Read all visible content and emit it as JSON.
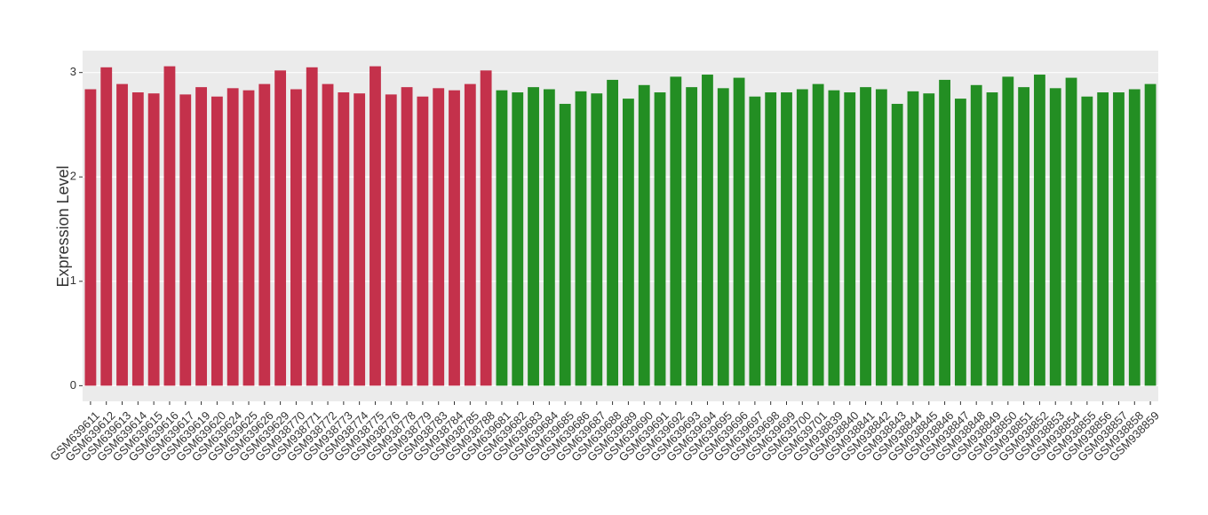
{
  "chart_data": {
    "type": "bar",
    "y_label": "Expression Level",
    "categories": [
      "GSM639611",
      "GSM639612",
      "GSM639613",
      "GSM639614",
      "GSM639615",
      "GSM639616",
      "GSM639617",
      "GSM639619",
      "GSM639620",
      "GSM639624",
      "GSM639625",
      "GSM639626",
      "GSM639629",
      "GSM938770",
      "GSM938771",
      "GSM938772",
      "GSM938773",
      "GSM938774",
      "GSM938775",
      "GSM938776",
      "GSM938778",
      "GSM938779",
      "GSM938783",
      "GSM938784",
      "GSM938785",
      "GSM938788",
      "GSM639681",
      "GSM639682",
      "GSM639683",
      "GSM639684",
      "GSM639685",
      "GSM639686",
      "GSM639687",
      "GSM639688",
      "GSM639689",
      "GSM639690",
      "GSM639691",
      "GSM639692",
      "GSM639693",
      "GSM639694",
      "GSM639695",
      "GSM639696",
      "GSM639697",
      "GSM639698",
      "GSM639699",
      "GSM639700",
      "GSM639701",
      "GSM938839",
      "GSM938840",
      "GSM938841",
      "GSM938842",
      "GSM938843",
      "GSM938844",
      "GSM938845",
      "GSM938846",
      "GSM938847",
      "GSM938848",
      "GSM938849",
      "GSM938850",
      "GSM938851",
      "GSM938852",
      "GSM938853",
      "GSM938854",
      "GSM938855",
      "GSM938856",
      "GSM938857",
      "GSM938858",
      "GSM938859"
    ],
    "series": [
      {
        "color": "#c4314b",
        "values": [
          2.84,
          3.05,
          2.89,
          2.81,
          2.8,
          3.06,
          2.79,
          2.86,
          2.77,
          2.85,
          2.83,
          2.89,
          3.02,
          2.84,
          3.05,
          2.89,
          2.81,
          2.8,
          3.06,
          2.79,
          2.86,
          2.77,
          2.85,
          2.83,
          2.89,
          3.02,
          null,
          null,
          null,
          null,
          null,
          null,
          null,
          null,
          null,
          null,
          null,
          null,
          null,
          null,
          null,
          null,
          null,
          null,
          null,
          null,
          null,
          null,
          null,
          null,
          null,
          null,
          null,
          null,
          null,
          null,
          null,
          null,
          null,
          null,
          null,
          null,
          null,
          null,
          null,
          null,
          null,
          null
        ]
      },
      {
        "color": "#238e23",
        "values": [
          null,
          null,
          null,
          null,
          null,
          null,
          null,
          null,
          null,
          null,
          null,
          null,
          null,
          null,
          null,
          null,
          null,
          null,
          null,
          null,
          null,
          null,
          null,
          null,
          null,
          null,
          2.83,
          2.81,
          2.86,
          2.84,
          2.7,
          2.82,
          2.8,
          2.93,
          2.75,
          2.88,
          2.81,
          2.96,
          2.86,
          2.98,
          2.85,
          2.95,
          2.77,
          2.81,
          2.81,
          2.84,
          2.89,
          2.83,
          2.81,
          2.86,
          2.84,
          2.7,
          2.82,
          2.8,
          2.93,
          2.75,
          2.88,
          2.81,
          2.96,
          2.86,
          2.98,
          2.85,
          2.95,
          2.77,
          2.81,
          2.81,
          2.84,
          2.89
        ]
      }
    ],
    "ylim": [
      -0.15,
      3.21
    ],
    "yticks": [
      0,
      1,
      2,
      3
    ],
    "grid": true
  }
}
